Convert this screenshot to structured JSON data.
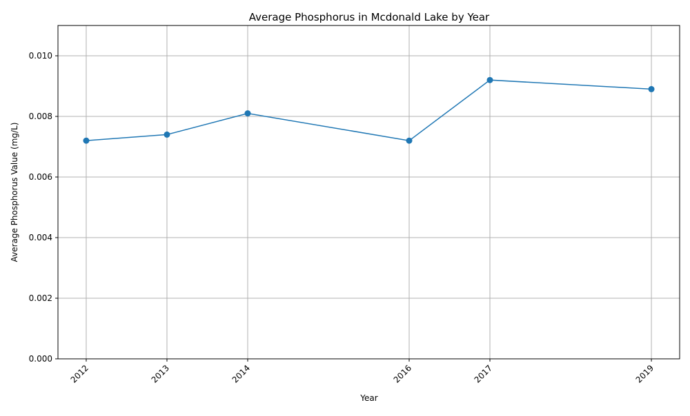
{
  "chart_data": {
    "type": "line",
    "title": "Average Phosphorus in Mcdonald Lake by Year",
    "xlabel": "Year",
    "ylabel": "Average Phosphorus Value (mg/L)",
    "x": [
      2012,
      2013,
      2014,
      2016,
      2017,
      2019
    ],
    "x_tick_labels": [
      "2012",
      "2013",
      "2014",
      "2016",
      "2017",
      "2019"
    ],
    "series": [
      {
        "values": [
          0.0072,
          0.0074,
          0.0081,
          0.0072,
          0.0092,
          0.0089
        ],
        "color": "#1f77b4",
        "marker": "circle"
      }
    ],
    "xlim": [
      2011.65,
      2019.35
    ],
    "ylim": [
      0,
      0.011
    ],
    "y_ticks": [
      0,
      0.002,
      0.004,
      0.006,
      0.008,
      0.01
    ],
    "y_tick_labels": [
      "0.000",
      "0.002",
      "0.004",
      "0.006",
      "0.008",
      "0.010"
    ],
    "grid": true,
    "legend": "none",
    "colors": {
      "line": "#1f77b4",
      "grid": "#b0b0b0",
      "axes": "#000000"
    }
  }
}
